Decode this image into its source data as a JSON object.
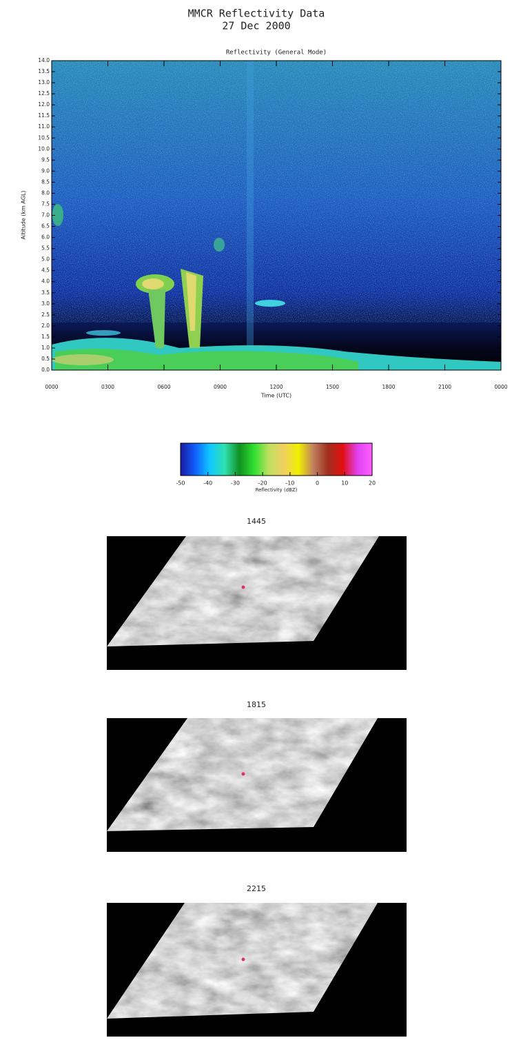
{
  "header": {
    "title": "MMCR Reflectivity Data",
    "date": "27 Dec 2000"
  },
  "chart_data": [
    {
      "type": "heatmap",
      "subtitle": "Reflectivity (General Mode)",
      "xlabel": "Time (UTC)",
      "ylabel": "Altitude (km AGL)",
      "xlim": [
        0,
        24
      ],
      "xticks": [
        {
          "value": 0,
          "label": "0000"
        },
        {
          "value": 3,
          "label": "0300"
        },
        {
          "value": 6,
          "label": "0600"
        },
        {
          "value": 9,
          "label": "0900"
        },
        {
          "value": 12,
          "label": "1200"
        },
        {
          "value": 15,
          "label": "1500"
        },
        {
          "value": 18,
          "label": "1800"
        },
        {
          "value": 21,
          "label": "2100"
        },
        {
          "value": 24,
          "label": "0000"
        }
      ],
      "ylim": [
        0,
        14
      ],
      "yticks": [
        {
          "value": 0,
          "label": "0.0"
        },
        0.5,
        {
          "value": 1,
          "label": "1.0"
        },
        1.5,
        {
          "value": 2,
          "label": "2.0"
        },
        2.5,
        {
          "value": 3,
          "label": "3.0"
        },
        3.5,
        {
          "value": 4,
          "label": "4.0"
        },
        4.5,
        {
          "value": 5,
          "label": "5.0"
        },
        5.5,
        {
          "value": 6,
          "label": "6.0"
        },
        6.5,
        {
          "value": 7,
          "label": "7.0"
        },
        7.5,
        {
          "value": 8,
          "label": "8.0"
        },
        8.5,
        {
          "value": 9,
          "label": "9.0"
        },
        9.5,
        {
          "value": 10,
          "label": "10.0"
        },
        10.5,
        {
          "value": 11,
          "label": "11.0"
        },
        11.5,
        {
          "value": 12,
          "label": "12.0"
        },
        12.5,
        {
          "value": 13,
          "label": "13.0"
        },
        13.5,
        {
          "value": 14,
          "label": "14.0"
        }
      ]
    },
    {
      "type": "colorbar",
      "xlabel": "Reflectivity (dBZ)",
      "xlim": [
        -50,
        20
      ],
      "xticks": [
        -50,
        -40,
        -30,
        -20,
        -10,
        0,
        10,
        20
      ],
      "colors": [
        "#1a1aa0",
        "#1060ff",
        "#10c8ff",
        "#30e0b0",
        "#109020",
        "#30e030",
        "#c0e060",
        "#f0d060",
        "#f0f000",
        "#c08060",
        "#a03020",
        "#e01010",
        "#e040f0",
        "#ff60ff"
      ]
    }
  ],
  "images": [
    {
      "label": "1445"
    },
    {
      "label": "1815"
    },
    {
      "label": "2215"
    }
  ]
}
